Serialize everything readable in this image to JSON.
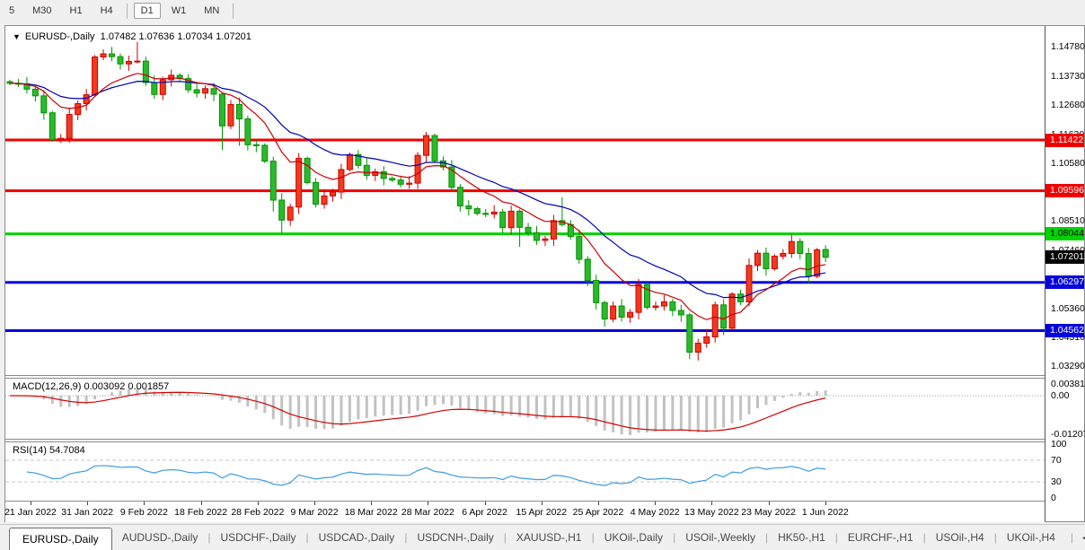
{
  "toolbar": {
    "timeframes": [
      "5",
      "M30",
      "H1",
      "H4",
      "D1",
      "W1",
      "MN"
    ],
    "active": "D1",
    "separators_after": [
      "H4",
      "MN"
    ]
  },
  "title": {
    "dropdown_glyph": "▼",
    "symbol": "EURUSD-,Daily",
    "open": "1.07482",
    "high": "1.07636",
    "low": "1.07034",
    "close": "1.07201"
  },
  "price_axis": {
    "ticks": [
      {
        "text": "1.14780",
        "value": 1.1478
      },
      {
        "text": "1.13730",
        "value": 1.1373
      },
      {
        "text": "1.12680",
        "value": 1.1268
      },
      {
        "text": "1.11630",
        "value": 1.1163
      },
      {
        "text": "1.10580",
        "value": 1.1058
      },
      {
        "text": "1.08510",
        "value": 1.0851
      },
      {
        "text": "1.07460",
        "value": 1.0746
      },
      {
        "text": "1.05360",
        "value": 1.0536
      },
      {
        "text": "1.04310",
        "value": 1.0431
      },
      {
        "text": "1.03290",
        "value": 1.0329
      }
    ]
  },
  "levels": [
    {
      "label": "1.11422",
      "value": 1.11422,
      "color": "#f20000",
      "text_color": "#ffffff",
      "thickness": 3
    },
    {
      "label": "1.09596",
      "value": 1.09596,
      "color": "#f20000",
      "text_color": "#ffffff",
      "thickness": 3
    },
    {
      "label": "1.08044",
      "value": 1.08044,
      "color": "#00d400",
      "text_color": "#000000",
      "thickness": 3
    },
    {
      "label": "1.06297",
      "value": 1.06297,
      "color": "#0404dd",
      "text_color": "#ffffff",
      "thickness": 3
    },
    {
      "label": "1.04562",
      "value": 1.04562,
      "color": "#0404dd",
      "text_color": "#ffffff",
      "thickness": 3
    }
  ],
  "current_price": {
    "label": "1.07201",
    "value": 1.07201,
    "bg": "#000000",
    "fg": "#ffffff"
  },
  "macd_pane": {
    "label": "MACD(12,26,9) 0.003092 0.001857",
    "axis_ticks": [
      {
        "text": "0.003814",
        "value": 0.003814
      },
      {
        "text": "0.00",
        "value": 0.0
      },
      {
        "text": "-0.012077",
        "value": -0.012077
      }
    ]
  },
  "rsi_pane": {
    "label": "RSI(14) 54.7084",
    "axis_ticks": [
      {
        "text": "100",
        "value": 100
      },
      {
        "text": "70",
        "value": 70
      },
      {
        "text": "30",
        "value": 30
      },
      {
        "text": "0",
        "value": 0
      }
    ],
    "dashed_levels": [
      70,
      30
    ]
  },
  "date_axis": [
    "21 Jan 2022",
    "31 Jan 2022",
    "9 Feb 2022",
    "18 Feb 2022",
    "28 Feb 2022",
    "9 Mar 2022",
    "18 Mar 2022",
    "28 Mar 2022",
    "6 Apr 2022",
    "15 Apr 2022",
    "25 Apr 2022",
    "4 May 2022",
    "13 May 2022",
    "23 May 2022",
    "1 Jun 2022"
  ],
  "tabs": {
    "items": [
      "EURUSD-,Daily",
      "AUDUSD-,Daily",
      "USDCHF-,Daily",
      "USDCAD-,Daily",
      "USDCNH-,Daily",
      "XAUUSD-,H1",
      "UKOil-,Daily",
      "USOil-,Weekly",
      "HK50-,H1",
      "EURCHF-,H1",
      "USOil-,H4",
      "UKOil-,H4"
    ],
    "active_index": 0,
    "scroll_left_glyph": "◀",
    "scroll_right_glyph": "▶"
  },
  "chart_data": {
    "type": "candlestick",
    "symbol": "EURUSD, Daily",
    "x_range": [
      "20 Jan 2022",
      "3 Jun 2022"
    ],
    "visible_price_range": [
      1.03,
      1.1546
    ],
    "first_open": 1.1352,
    "closes": [
      1.1346,
      1.1344,
      1.1325,
      1.1301,
      1.124,
      1.1143,
      1.1148,
      1.1234,
      1.1273,
      1.1305,
      1.1441,
      1.1452,
      1.1442,
      1.1416,
      1.1425,
      1.1426,
      1.1349,
      1.1306,
      1.1359,
      1.1375,
      1.1363,
      1.1323,
      1.1311,
      1.1327,
      1.1307,
      1.1193,
      1.127,
      1.1218,
      1.1125,
      1.1123,
      1.1066,
      1.0926,
      1.0854,
      1.0901,
      1.1076,
      1.0989,
      1.0911,
      1.0941,
      1.0955,
      1.1036,
      1.109,
      1.1051,
      1.1015,
      1.1028,
      1.1004,
      1.0998,
      1.0983,
      1.0987,
      1.1087,
      1.1158,
      1.1067,
      1.1045,
      1.0972,
      1.0905,
      1.0895,
      1.0878,
      1.0876,
      1.0883,
      1.0827,
      1.0886,
      1.0828,
      1.0808,
      1.0781,
      1.0786,
      1.0852,
      1.0838,
      1.0795,
      1.0713,
      1.0637,
      1.0557,
      1.0498,
      1.0545,
      1.0505,
      1.0522,
      1.0622,
      1.054,
      1.0545,
      1.056,
      1.0529,
      1.0513,
      1.0379,
      1.0411,
      1.0434,
      1.0549,
      1.0465,
      1.0588,
      1.056,
      1.0691,
      1.0735,
      1.0679,
      1.0724,
      1.0734,
      1.0777,
      1.0734,
      1.0652,
      1.0747,
      1.072
    ],
    "wick_overrides": {
      "15": {
        "h": 1.1495
      },
      "25": {
        "l": 1.1106
      },
      "27": {
        "l": 1.1121
      },
      "31": {
        "l": 1.0885
      },
      "32": {
        "l": 1.0806
      },
      "34": {
        "h": 1.1095
      },
      "49": {
        "h": 1.1171
      },
      "60": {
        "l": 1.0758
      },
      "65": {
        "h": 1.0936
      },
      "70": {
        "l": 1.047
      },
      "80": {
        "l": 1.0354
      },
      "81": {
        "l": 1.0349
      },
      "96": {
        "o": 1.07482,
        "h": 1.07636,
        "l": 1.07034,
        "c": 1.07201
      }
    },
    "colors": {
      "bull_fill": "#f23a1e",
      "bull_border": "#cc0000",
      "bear_fill": "#2eb82e",
      "bear_border": "#009200",
      "ma_fast": "#cc0000",
      "ma_slow": "#0000b8",
      "macd_histogram": "#c2c2c2",
      "macd_signal": "#d40000",
      "rsi_line": "#3e9be0"
    },
    "indicators": {
      "ma_fast": {
        "type": "ema",
        "period": 10
      },
      "ma_slow": {
        "type": "ema",
        "period": 21
      },
      "macd": {
        "fast": 12,
        "slow": 26,
        "signal": 9,
        "current": 0.003092,
        "current_signal": 0.001857
      },
      "rsi": {
        "period": 14,
        "current": 54.7084
      }
    }
  }
}
